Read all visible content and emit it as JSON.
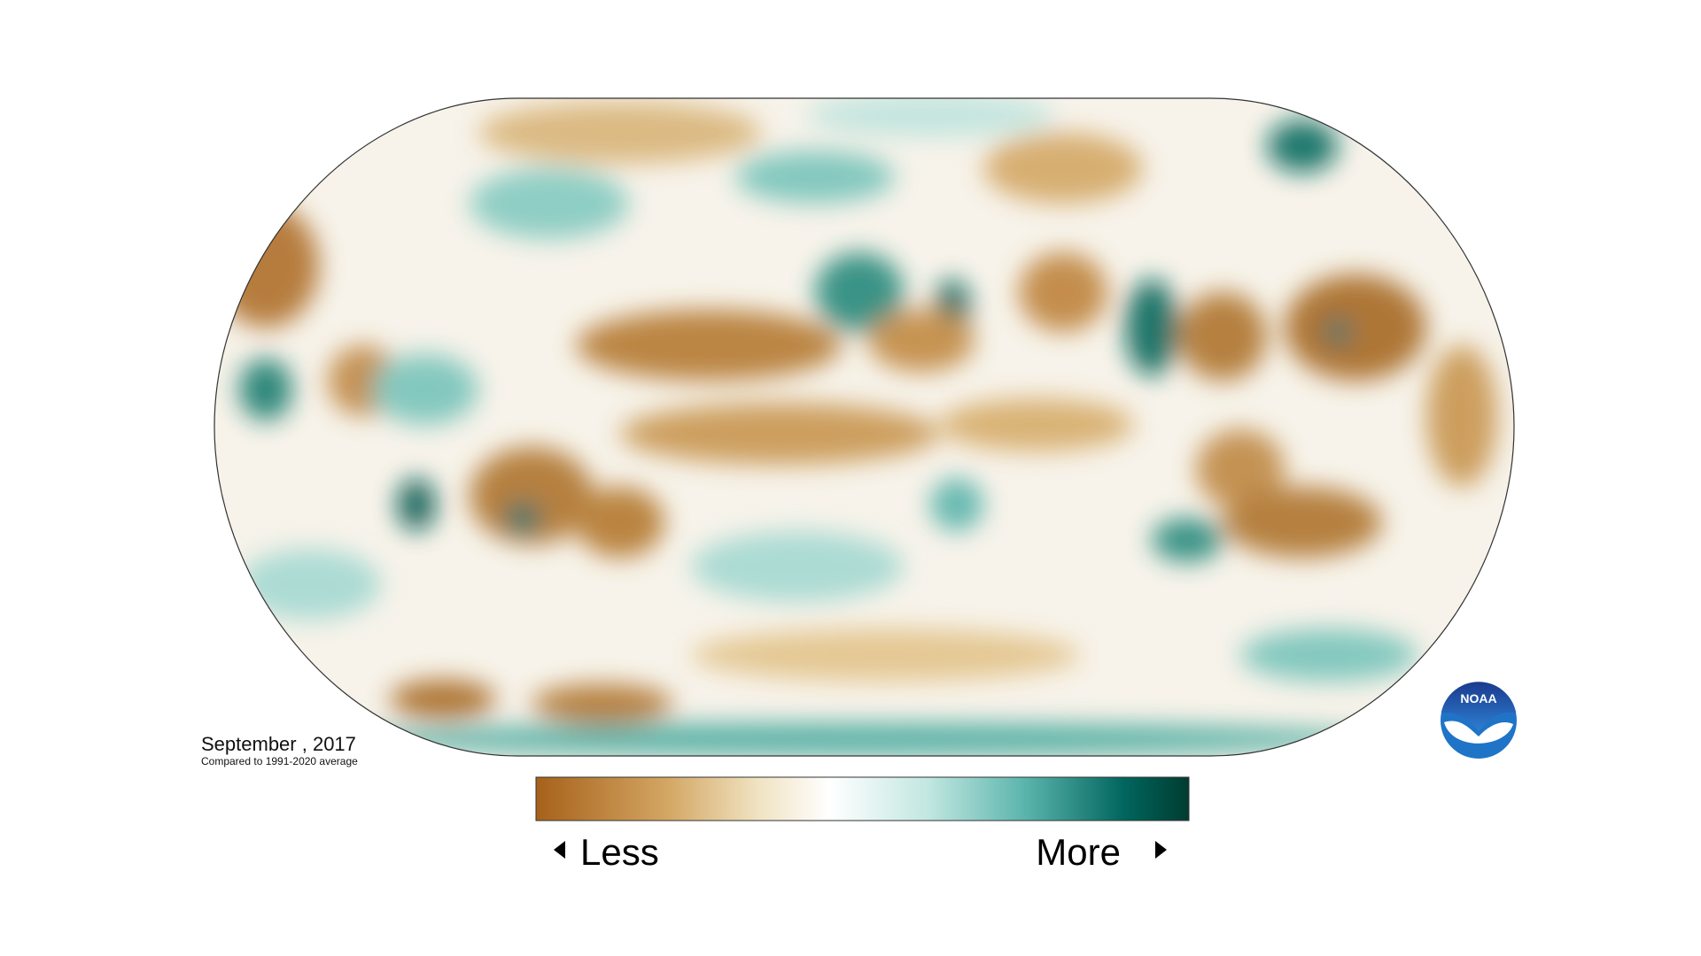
{
  "title": "September , 2017",
  "subtitle": "Compared to 1991-2020 average",
  "legend": {
    "low_label": "Less",
    "high_label": "More"
  },
  "logo": "NOAA"
}
